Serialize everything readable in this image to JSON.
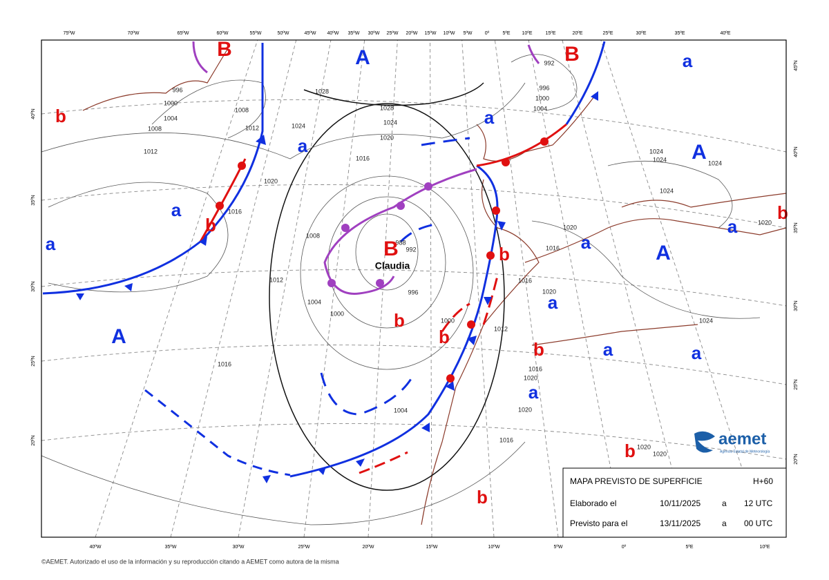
{
  "map": {
    "top_lon_labels": [
      "75ºW",
      "70ºW",
      "65ºW",
      "60ºW",
      "55ºW",
      "50ºW",
      "45ºW",
      "40ºW",
      "35ºW",
      "30ºW",
      "25ºW",
      "20ºW",
      "15ºW",
      "10ºW",
      "5ºW",
      "0º",
      "5ºE",
      "10ºE",
      "15ºE",
      "20ºE",
      "25ºE",
      "30ºE",
      "35ºE",
      "40ºE"
    ],
    "bottom_lon_labels": [
      "40ºW",
      "35ºW",
      "30ºW",
      "25ºW",
      "20ºW",
      "15ºW",
      "10ºW",
      "5ºW",
      "0º",
      "5ºE",
      "10ºE"
    ],
    "left_lat_labels": [
      "40ºN",
      "35ºN",
      "30ºN",
      "25ºN",
      "20ºN"
    ],
    "right_lat_labels": [
      "45ºN",
      "40ºN",
      "35ºN",
      "30ºN",
      "25ºN",
      "20ºN"
    ],
    "pressure_centers": [
      "B",
      "B",
      "A",
      "a",
      "b",
      "a",
      "a",
      "A",
      "a",
      "b",
      "a",
      "B",
      "a",
      "b",
      "A",
      "a",
      "b",
      "a",
      "b",
      "b",
      "A",
      "b",
      "a",
      "a",
      "a",
      "b",
      "b"
    ],
    "isobar_labels": [
      1028,
      1028,
      1024,
      1020,
      1016,
      1012,
      1012,
      1008,
      1012,
      1004,
      1000,
      996,
      1016,
      1020,
      1016,
      1004,
      1012,
      1016,
      1016,
      1020,
      1020,
      1016,
      1020,
      1020,
      1024,
      1024,
      1024,
      1024,
      1024,
      1020,
      1016,
      1020,
      992,
      996,
      1000,
      1004,
      996,
      1000,
      1004,
      1008,
      1008,
      1024,
      1020,
      1000,
      992,
      988
    ],
    "storm_name": "Claudia"
  },
  "info_box": {
    "title": "MAPA PREVISTO DE SUPERFICIE",
    "lead": "H+60",
    "rows": [
      [
        "Elaborado el",
        "10/11/2025",
        "a",
        "12 UTC"
      ],
      [
        "Previsto para el",
        "13/11/2025",
        "a",
        "00 UTC"
      ]
    ]
  },
  "logo": {
    "name": "aemet",
    "subtitle": "Agencia Estatal de Meteorología"
  },
  "copyright": "©AEMET. Autorizado el uso de la información y su reproducción citando a AEMET como autora de la misma"
}
